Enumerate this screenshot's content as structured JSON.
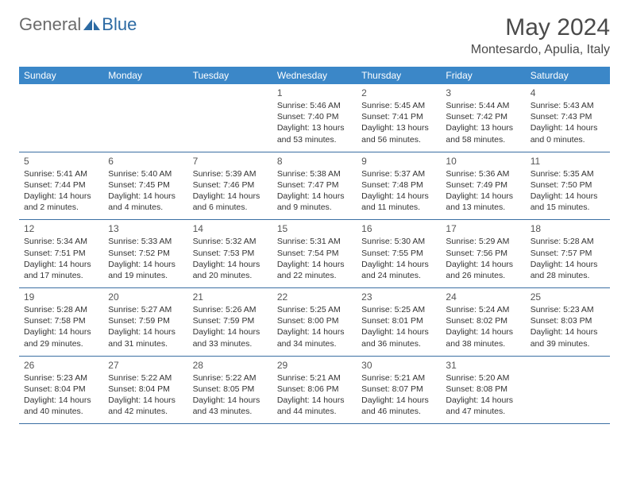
{
  "logo": {
    "general": "General",
    "blue": "Blue"
  },
  "title": "May 2024",
  "location": "Montesardo, Apulia, Italy",
  "colors": {
    "header_bg": "#3b87c8",
    "header_text": "#ffffff",
    "border": "#3b6fa3",
    "title_color": "#4a4a4a",
    "logo_gray": "#6b6b6b",
    "logo_blue": "#2c6aa3",
    "text": "#333333"
  },
  "weekdays": [
    "Sunday",
    "Monday",
    "Tuesday",
    "Wednesday",
    "Thursday",
    "Friday",
    "Saturday"
  ],
  "weeks": [
    [
      null,
      null,
      null,
      {
        "n": "1",
        "sr": "Sunrise: 5:46 AM",
        "ss": "Sunset: 7:40 PM",
        "d1": "Daylight: 13 hours",
        "d2": "and 53 minutes."
      },
      {
        "n": "2",
        "sr": "Sunrise: 5:45 AM",
        "ss": "Sunset: 7:41 PM",
        "d1": "Daylight: 13 hours",
        "d2": "and 56 minutes."
      },
      {
        "n": "3",
        "sr": "Sunrise: 5:44 AM",
        "ss": "Sunset: 7:42 PM",
        "d1": "Daylight: 13 hours",
        "d2": "and 58 minutes."
      },
      {
        "n": "4",
        "sr": "Sunrise: 5:43 AM",
        "ss": "Sunset: 7:43 PM",
        "d1": "Daylight: 14 hours",
        "d2": "and 0 minutes."
      }
    ],
    [
      {
        "n": "5",
        "sr": "Sunrise: 5:41 AM",
        "ss": "Sunset: 7:44 PM",
        "d1": "Daylight: 14 hours",
        "d2": "and 2 minutes."
      },
      {
        "n": "6",
        "sr": "Sunrise: 5:40 AM",
        "ss": "Sunset: 7:45 PM",
        "d1": "Daylight: 14 hours",
        "d2": "and 4 minutes."
      },
      {
        "n": "7",
        "sr": "Sunrise: 5:39 AM",
        "ss": "Sunset: 7:46 PM",
        "d1": "Daylight: 14 hours",
        "d2": "and 6 minutes."
      },
      {
        "n": "8",
        "sr": "Sunrise: 5:38 AM",
        "ss": "Sunset: 7:47 PM",
        "d1": "Daylight: 14 hours",
        "d2": "and 9 minutes."
      },
      {
        "n": "9",
        "sr": "Sunrise: 5:37 AM",
        "ss": "Sunset: 7:48 PM",
        "d1": "Daylight: 14 hours",
        "d2": "and 11 minutes."
      },
      {
        "n": "10",
        "sr": "Sunrise: 5:36 AM",
        "ss": "Sunset: 7:49 PM",
        "d1": "Daylight: 14 hours",
        "d2": "and 13 minutes."
      },
      {
        "n": "11",
        "sr": "Sunrise: 5:35 AM",
        "ss": "Sunset: 7:50 PM",
        "d1": "Daylight: 14 hours",
        "d2": "and 15 minutes."
      }
    ],
    [
      {
        "n": "12",
        "sr": "Sunrise: 5:34 AM",
        "ss": "Sunset: 7:51 PM",
        "d1": "Daylight: 14 hours",
        "d2": "and 17 minutes."
      },
      {
        "n": "13",
        "sr": "Sunrise: 5:33 AM",
        "ss": "Sunset: 7:52 PM",
        "d1": "Daylight: 14 hours",
        "d2": "and 19 minutes."
      },
      {
        "n": "14",
        "sr": "Sunrise: 5:32 AM",
        "ss": "Sunset: 7:53 PM",
        "d1": "Daylight: 14 hours",
        "d2": "and 20 minutes."
      },
      {
        "n": "15",
        "sr": "Sunrise: 5:31 AM",
        "ss": "Sunset: 7:54 PM",
        "d1": "Daylight: 14 hours",
        "d2": "and 22 minutes."
      },
      {
        "n": "16",
        "sr": "Sunrise: 5:30 AM",
        "ss": "Sunset: 7:55 PM",
        "d1": "Daylight: 14 hours",
        "d2": "and 24 minutes."
      },
      {
        "n": "17",
        "sr": "Sunrise: 5:29 AM",
        "ss": "Sunset: 7:56 PM",
        "d1": "Daylight: 14 hours",
        "d2": "and 26 minutes."
      },
      {
        "n": "18",
        "sr": "Sunrise: 5:28 AM",
        "ss": "Sunset: 7:57 PM",
        "d1": "Daylight: 14 hours",
        "d2": "and 28 minutes."
      }
    ],
    [
      {
        "n": "19",
        "sr": "Sunrise: 5:28 AM",
        "ss": "Sunset: 7:58 PM",
        "d1": "Daylight: 14 hours",
        "d2": "and 29 minutes."
      },
      {
        "n": "20",
        "sr": "Sunrise: 5:27 AM",
        "ss": "Sunset: 7:59 PM",
        "d1": "Daylight: 14 hours",
        "d2": "and 31 minutes."
      },
      {
        "n": "21",
        "sr": "Sunrise: 5:26 AM",
        "ss": "Sunset: 7:59 PM",
        "d1": "Daylight: 14 hours",
        "d2": "and 33 minutes."
      },
      {
        "n": "22",
        "sr": "Sunrise: 5:25 AM",
        "ss": "Sunset: 8:00 PM",
        "d1": "Daylight: 14 hours",
        "d2": "and 34 minutes."
      },
      {
        "n": "23",
        "sr": "Sunrise: 5:25 AM",
        "ss": "Sunset: 8:01 PM",
        "d1": "Daylight: 14 hours",
        "d2": "and 36 minutes."
      },
      {
        "n": "24",
        "sr": "Sunrise: 5:24 AM",
        "ss": "Sunset: 8:02 PM",
        "d1": "Daylight: 14 hours",
        "d2": "and 38 minutes."
      },
      {
        "n": "25",
        "sr": "Sunrise: 5:23 AM",
        "ss": "Sunset: 8:03 PM",
        "d1": "Daylight: 14 hours",
        "d2": "and 39 minutes."
      }
    ],
    [
      {
        "n": "26",
        "sr": "Sunrise: 5:23 AM",
        "ss": "Sunset: 8:04 PM",
        "d1": "Daylight: 14 hours",
        "d2": "and 40 minutes."
      },
      {
        "n": "27",
        "sr": "Sunrise: 5:22 AM",
        "ss": "Sunset: 8:04 PM",
        "d1": "Daylight: 14 hours",
        "d2": "and 42 minutes."
      },
      {
        "n": "28",
        "sr": "Sunrise: 5:22 AM",
        "ss": "Sunset: 8:05 PM",
        "d1": "Daylight: 14 hours",
        "d2": "and 43 minutes."
      },
      {
        "n": "29",
        "sr": "Sunrise: 5:21 AM",
        "ss": "Sunset: 8:06 PM",
        "d1": "Daylight: 14 hours",
        "d2": "and 44 minutes."
      },
      {
        "n": "30",
        "sr": "Sunrise: 5:21 AM",
        "ss": "Sunset: 8:07 PM",
        "d1": "Daylight: 14 hours",
        "d2": "and 46 minutes."
      },
      {
        "n": "31",
        "sr": "Sunrise: 5:20 AM",
        "ss": "Sunset: 8:08 PM",
        "d1": "Daylight: 14 hours",
        "d2": "and 47 minutes."
      },
      null
    ]
  ]
}
